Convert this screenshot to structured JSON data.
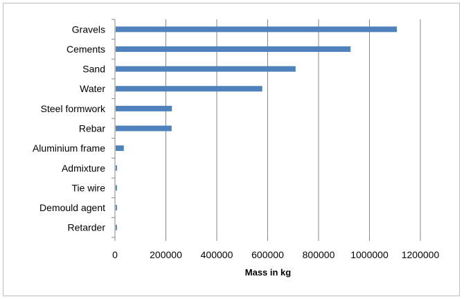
{
  "chart_data": {
    "type": "bar",
    "orientation": "horizontal",
    "categories": [
      "Gravels",
      "Cements",
      "Sand",
      "Water",
      "Steel formwork",
      "Rebar",
      "Aluminium frame",
      "Admixture",
      "Tie wire",
      "Demould agent",
      "Retarder"
    ],
    "values": [
      1105000,
      923000,
      707000,
      576000,
      221000,
      220000,
      32000,
      5000,
      5000,
      5000,
      5000
    ],
    "xlabel": "Mass in kg",
    "ylabel": "",
    "xlim": [
      0,
      1200000
    ],
    "xticks": [
      "0",
      "200000",
      "400000",
      "600000",
      "800000",
      "1000000",
      "1200000"
    ],
    "grid": "vertical",
    "legend": "none",
    "bar_color": "#4f81bd",
    "grid_color": "#868686"
  }
}
